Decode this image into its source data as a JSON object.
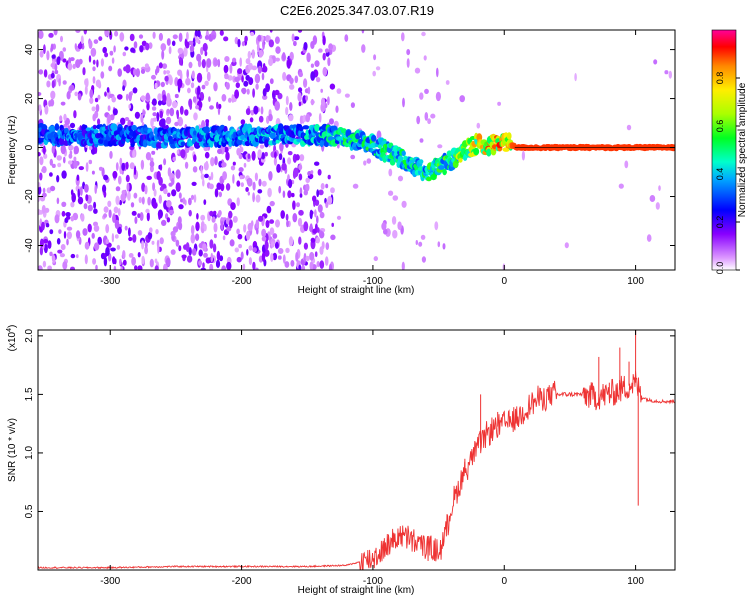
{
  "title": "C2E6.2025.347.03.07.R19",
  "chart_data": [
    {
      "type": "heatmap",
      "title": "C2E6.2025.347.03.07.R19",
      "xlabel": "Height of straight line (km)",
      "ylabel": "Frequency (Hz)",
      "xlim": [
        -355,
        130
      ],
      "ylim": [
        -50,
        48
      ],
      "xticks": [
        -300,
        -200,
        -100,
        0,
        100
      ],
      "xtick_labels": [
        "-300",
        "-200",
        "-100",
        "0",
        "100"
      ],
      "yticks": [
        -40,
        -20,
        0,
        20,
        40
      ],
      "ytick_labels": [
        "-40",
        "-20",
        "0",
        "20",
        "40"
      ],
      "colorbar": {
        "label": "Normalized spectral amplitude",
        "range": [
          0,
          1
        ],
        "ticks": [
          0.0,
          0.2,
          0.4,
          0.6,
          0.8
        ],
        "tick_labels": [
          "0.0",
          "0.2",
          "0.4",
          "0.6",
          "0.8"
        ],
        "colors": [
          "#ffffff",
          "#cc88ff",
          "#7700ee",
          "#0000ff",
          "#00ccff",
          "#00ff44",
          "#aaff00",
          "#ffee00",
          "#ff8800",
          "#ff0000",
          "#ff00aa"
        ]
      },
      "ridge": {
        "x": [
          -345,
          -300,
          -250,
          -200,
          -160,
          -140,
          -120,
          -100,
          -80,
          -60,
          -45,
          -30,
          -20,
          -10,
          0,
          10,
          60,
          100,
          130
        ],
        "y": [
          5,
          5,
          4,
          5,
          5,
          5,
          4,
          1,
          -4,
          -10,
          -7,
          -2,
          2,
          1,
          2,
          0,
          0,
          0,
          0
        ],
        "amplitude": [
          0.35,
          0.35,
          0.35,
          0.4,
          0.4,
          0.45,
          0.5,
          0.5,
          0.5,
          0.5,
          0.55,
          0.65,
          0.8,
          0.8,
          0.85,
          0.9,
          0.9,
          0.9,
          0.9
        ]
      }
    },
    {
      "type": "line",
      "xlabel": "Height of straight line (km)",
      "ylabel": "SNR (10 * v/v)",
      "multiplier_label": "(x10",
      "multiplier_exp": "4",
      "multiplier_close": ")",
      "xlim": [
        -355,
        130
      ],
      "ylim": [
        0,
        2.05
      ],
      "xticks": [
        -300,
        -200,
        -100,
        0,
        100
      ],
      "xtick_labels": [
        "-300",
        "-200",
        "-100",
        "0",
        "100"
      ],
      "yticks": [
        0.5,
        1.0,
        1.5,
        2.0
      ],
      "ytick_labels": [
        "0.5",
        "1.0",
        "1.5",
        "2.0"
      ],
      "color": "#ee3333",
      "x": [
        -355,
        -300,
        -250,
        -200,
        -150,
        -120,
        -100,
        -90,
        -80,
        -70,
        -60,
        -50,
        -45,
        -40,
        -30,
        -20,
        -10,
        0,
        10,
        20,
        30,
        40,
        50,
        60,
        70,
        80,
        90,
        100,
        105,
        110,
        120,
        130
      ],
      "y": [
        0.02,
        0.02,
        0.03,
        0.03,
        0.03,
        0.04,
        0.1,
        0.2,
        0.3,
        0.25,
        0.2,
        0.15,
        0.3,
        0.55,
        0.85,
        1.05,
        1.2,
        1.25,
        1.3,
        1.42,
        1.48,
        1.5,
        1.5,
        1.5,
        1.48,
        1.5,
        1.55,
        1.6,
        1.48,
        1.45,
        1.44,
        1.44
      ],
      "spikes": [
        {
          "x": -30,
          "y": 0.95
        },
        {
          "x": -18,
          "y": 1.5
        },
        {
          "x": -5,
          "y": 1.35
        },
        {
          "x": 72,
          "y": 1.82
        },
        {
          "x": 80,
          "y": 1.6
        },
        {
          "x": 88,
          "y": 1.9
        },
        {
          "x": 95,
          "y": 1.78
        },
        {
          "x": 100,
          "y": 2.05
        },
        {
          "x": 102,
          "y": 0.55
        }
      ]
    }
  ]
}
